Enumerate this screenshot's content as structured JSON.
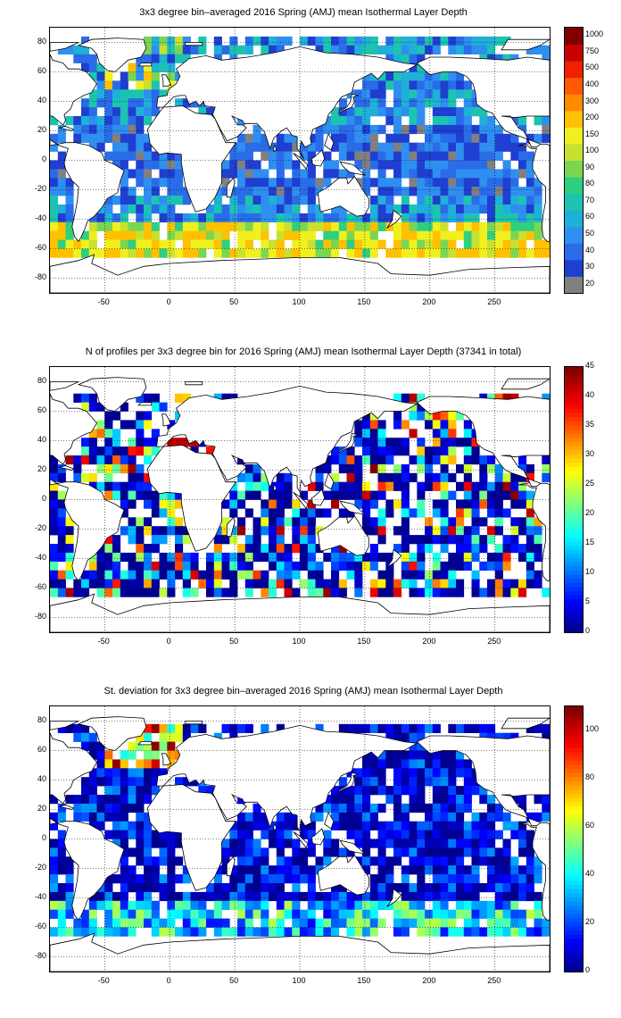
{
  "panels": [
    {
      "title": "3x3 degree bin–averaged 2016 Spring (AMJ) mean Isothermal Layer Depth",
      "colorbar": {
        "type": "discrete",
        "labels": [
          "20",
          "30",
          "40",
          "50",
          "60",
          "70",
          "80",
          "90",
          "100",
          "150",
          "200",
          "300",
          "400",
          "500",
          "750",
          "1000"
        ],
        "colors": [
          "#808080",
          "#1f3fd0",
          "#2a6ce8",
          "#2e8ff0",
          "#1fb0d8",
          "#1cc4b0",
          "#2ecf80",
          "#7ad650",
          "#c8e030",
          "#f0f020",
          "#ffc000",
          "#ff8a00",
          "#ff5a00",
          "#f02000",
          "#c80000",
          "#800000"
        ],
        "missing_color": "#808080"
      },
      "map_mode": "ild"
    },
    {
      "title": "N of profiles per 3x3 degree bin for 2016 Spring (AMJ) mean Isothermal Layer Depth  (37341 in total)",
      "colorbar": {
        "type": "continuous",
        "min": 0,
        "max": 45,
        "labels": [
          "0",
          "5",
          "10",
          "15",
          "20",
          "25",
          "30",
          "35",
          "40",
          "45"
        ]
      },
      "map_mode": "count"
    },
    {
      "title": "St. deviation for 3x3 degree bin–averaged 2016 Spring (AMJ) mean Isothermal Layer Depth",
      "colorbar": {
        "type": "continuous",
        "min": 0,
        "max": 110,
        "labels": [
          "0",
          "20",
          "40",
          "60",
          "80",
          "100"
        ]
      },
      "map_mode": "std"
    }
  ],
  "axes": {
    "x_ticks": [
      "-50",
      "0",
      "50",
      "100",
      "150",
      "200",
      "250"
    ],
    "y_ticks": [
      "80",
      "60",
      "40",
      "20",
      "0",
      "-20",
      "-40",
      "-60",
      "-80"
    ],
    "x_range": [
      -92,
      292
    ],
    "y_range": [
      -90,
      90
    ]
  },
  "colors": {
    "land": "#ffffff",
    "coast": "#000000",
    "grid": "#000000"
  }
}
